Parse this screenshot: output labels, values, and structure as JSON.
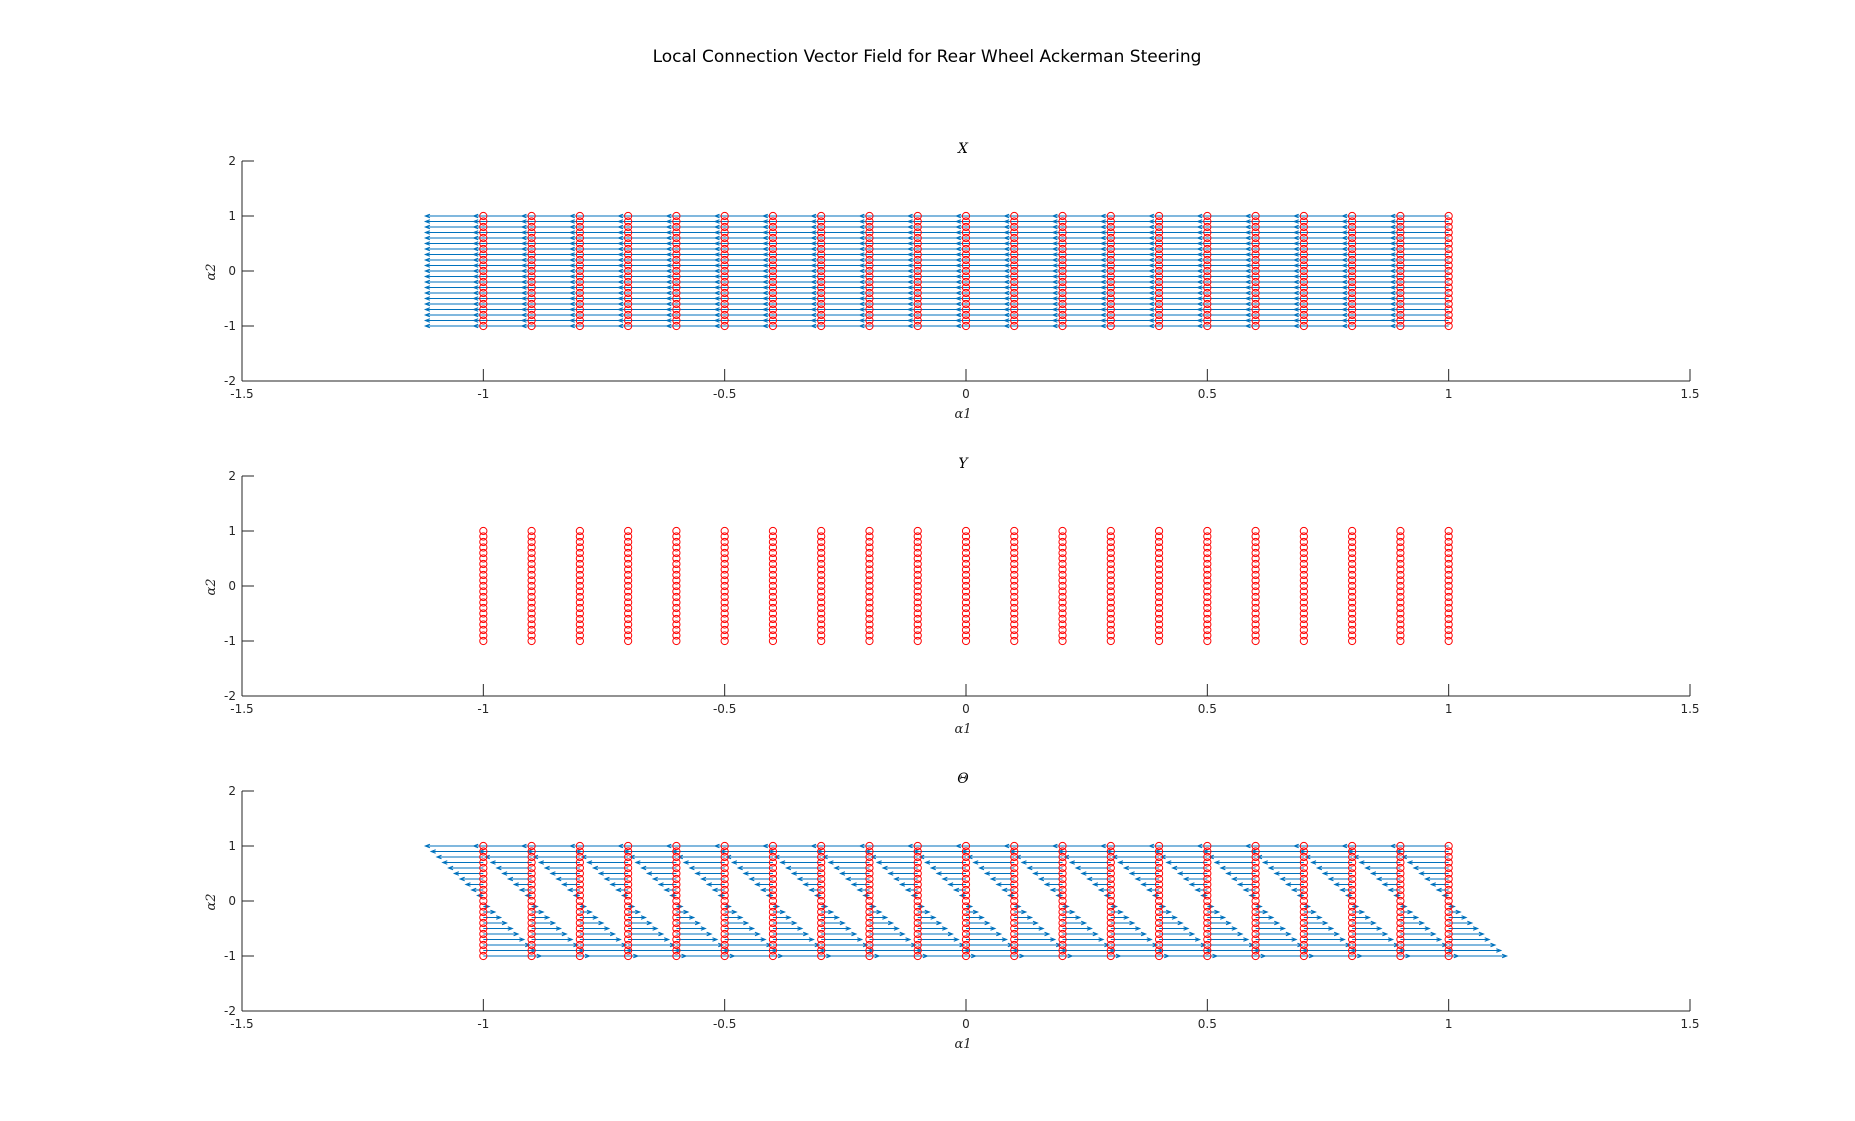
{
  "figure": {
    "title": "Local Connection Vector Field for Rear Wheel Ackerman Steering"
  },
  "colors": {
    "arrow": "#0072bd",
    "marker": "#ff0000",
    "axis": "#262626"
  },
  "chart_data": [
    {
      "type": "quiver",
      "title": "X",
      "xlabel": "α1",
      "ylabel": "α2",
      "xlim": [
        -1.5,
        1.5
      ],
      "ylim": [
        -2,
        2
      ],
      "xticks": [
        "-1.5",
        "-1",
        "-0.5",
        "0",
        "0.5",
        "1",
        "1.5"
      ],
      "yticks": [
        "-2",
        "-1",
        "0",
        "1",
        "2"
      ],
      "grid": false,
      "grid_x": {
        "start": -1,
        "stop": 1,
        "step": 0.1
      },
      "grid_y": {
        "start": -1,
        "stop": 1,
        "step": 0.1
      },
      "field": {
        "u": "-0.12",
        "v": "0"
      },
      "markers": "circle at every grid point"
    },
    {
      "type": "quiver",
      "title": "Y",
      "xlabel": "α1",
      "ylabel": "α2",
      "xlim": [
        -1.5,
        1.5
      ],
      "ylim": [
        -2,
        2
      ],
      "xticks": [
        "-1.5",
        "-1",
        "-0.5",
        "0",
        "0.5",
        "1",
        "1.5"
      ],
      "yticks": [
        "-2",
        "-1",
        "0",
        "1",
        "2"
      ],
      "grid": false,
      "grid_x": {
        "start": -1,
        "stop": 1,
        "step": 0.1
      },
      "grid_y": {
        "start": -1,
        "stop": 1,
        "step": 0.1
      },
      "field": {
        "u": "0",
        "v": "0"
      },
      "markers": "circle at every grid point"
    },
    {
      "type": "quiver",
      "title": "Θ",
      "xlabel": "α1",
      "ylabel": "α2",
      "xlim": [
        -1.5,
        1.5
      ],
      "ylim": [
        -2,
        2
      ],
      "xticks": [
        "-1.5",
        "-1",
        "-0.5",
        "0",
        "0.5",
        "1",
        "1.5"
      ],
      "yticks": [
        "-2",
        "-1",
        "0",
        "1",
        "2"
      ],
      "grid": false,
      "grid_x": {
        "start": -1,
        "stop": 1,
        "step": 0.1
      },
      "grid_y": {
        "start": -1,
        "stop": 1,
        "step": 0.1
      },
      "field": {
        "u": "-0.12 * α2",
        "v": "0"
      },
      "markers": "circle at every grid point"
    }
  ]
}
